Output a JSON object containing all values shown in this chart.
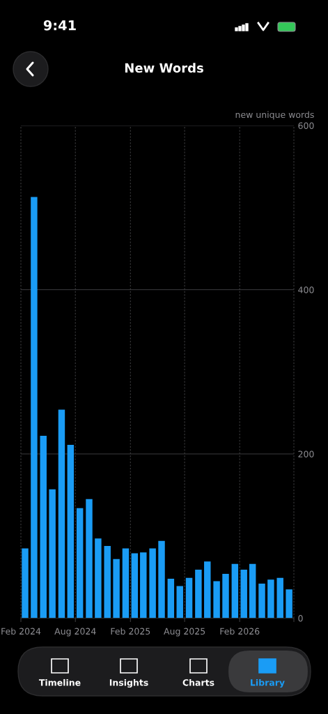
{
  "chart_data": {
    "type": "bar",
    "title": "New Words",
    "ylabel": "new unique words",
    "x": [
      "2024-02-15",
      "2024-03-16",
      "2024-04-16",
      "2024-05-16",
      "2024-06-16",
      "2024-07-16",
      "2024-08-16",
      "2024-09-16",
      "2024-10-16",
      "2024-11-16",
      "2024-12-16",
      "2025-01-16",
      "2025-02-15",
      "2025-03-16",
      "2025-04-16",
      "2025-05-16",
      "2025-06-16",
      "2025-07-16",
      "2025-08-16",
      "2025-09-16",
      "2025-10-16",
      "2025-11-16",
      "2025-12-16",
      "2026-01-16",
      "2026-02-15",
      "2026-03-16",
      "2026-04-16",
      "2026-05-16",
      "2026-06-16",
      "2026-07-16"
    ],
    "values": [
      85,
      513,
      222,
      157,
      254,
      211,
      134,
      145,
      97,
      88,
      72,
      85,
      79,
      80,
      85,
      94,
      48,
      39,
      49,
      59,
      69,
      45,
      54,
      66,
      59,
      66,
      42,
      47,
      49,
      35
    ],
    "color": "#1a9cf5",
    "xlim": [
      "2024-02",
      "2026-08"
    ],
    "xticks": [
      {
        "value": "2024-02",
        "label": "Feb 2024"
      },
      {
        "value": "2024-08",
        "label": "Aug 2024"
      },
      {
        "value": "2025-02",
        "label": "Feb 2025"
      },
      {
        "value": "2025-08",
        "label": "Aug 2025"
      },
      {
        "value": "2026-02",
        "label": "Feb 2026"
      },
      {
        "value": "2026-08",
        "label": null
      }
    ],
    "ylim": [
      0,
      600
    ],
    "yticks": [
      0,
      200,
      400,
      600
    ],
    "grid": true,
    "annotations": [
      "9:41",
      "Timeline",
      "Insights",
      "Charts",
      "Library"
    ]
  }
}
